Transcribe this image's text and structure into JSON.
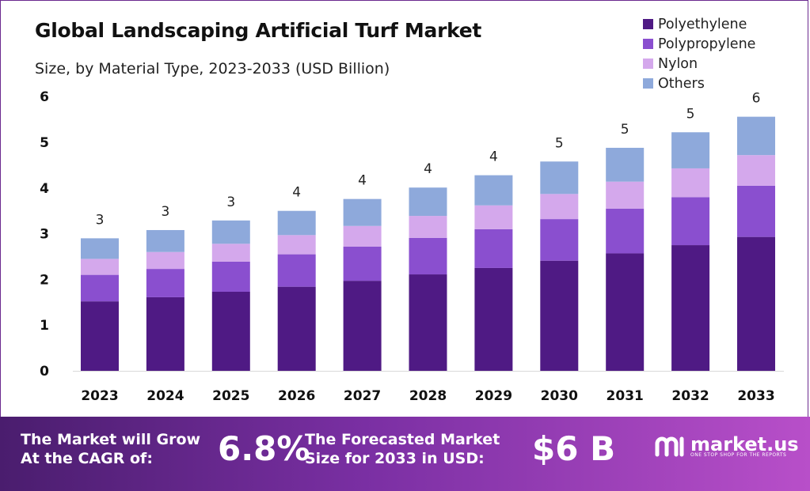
{
  "chart_data": {
    "type": "bar",
    "stacked": true,
    "title": "Global Landscaping Artificial Turf Market",
    "subtitle": "Size, by Material Type, 2023-2033 (USD Billion)",
    "categories": [
      "2023",
      "2024",
      "2025",
      "2026",
      "2027",
      "2028",
      "2029",
      "2030",
      "2031",
      "2032",
      "2033"
    ],
    "series": [
      {
        "name": "Polyethylene",
        "color": "#4f1a84",
        "values": [
          1.52,
          1.61,
          1.73,
          1.84,
          1.97,
          2.11,
          2.25,
          2.41,
          2.57,
          2.75,
          2.93
        ]
      },
      {
        "name": "Polypropylene",
        "color": "#8a4fcf",
        "values": [
          0.58,
          0.62,
          0.66,
          0.71,
          0.75,
          0.8,
          0.85,
          0.91,
          0.98,
          1.05,
          1.12
        ]
      },
      {
        "name": "Nylon",
        "color": "#d4a8ec",
        "values": [
          0.35,
          0.37,
          0.39,
          0.42,
          0.45,
          0.48,
          0.52,
          0.55,
          0.59,
          0.63,
          0.67
        ]
      },
      {
        "name": "Others",
        "color": "#8ea9db",
        "values": [
          0.45,
          0.48,
          0.51,
          0.53,
          0.59,
          0.62,
          0.66,
          0.71,
          0.74,
          0.79,
          0.84
        ]
      }
    ],
    "total_labels": [
      "3",
      "3",
      "3",
      "4",
      "4",
      "4",
      "4",
      "5",
      "5",
      "5",
      "6"
    ],
    "yticks": [
      "0",
      "1",
      "2",
      "3",
      "4",
      "5",
      "6"
    ],
    "ylim": [
      0,
      6
    ],
    "legend_position": "top-right"
  },
  "footer": {
    "cagr_label_line1": "The Market will Grow",
    "cagr_label_line2": "At the CAGR of:",
    "cagr_value": "6.8%",
    "forecast_label_line1": "The Forecasted Market",
    "forecast_label_line2": "Size for 2033 in USD:",
    "forecast_value": "$6 B",
    "brand_name": "market.us",
    "brand_tagline": "ONE STOP SHOP FOR THE REPORTS"
  }
}
